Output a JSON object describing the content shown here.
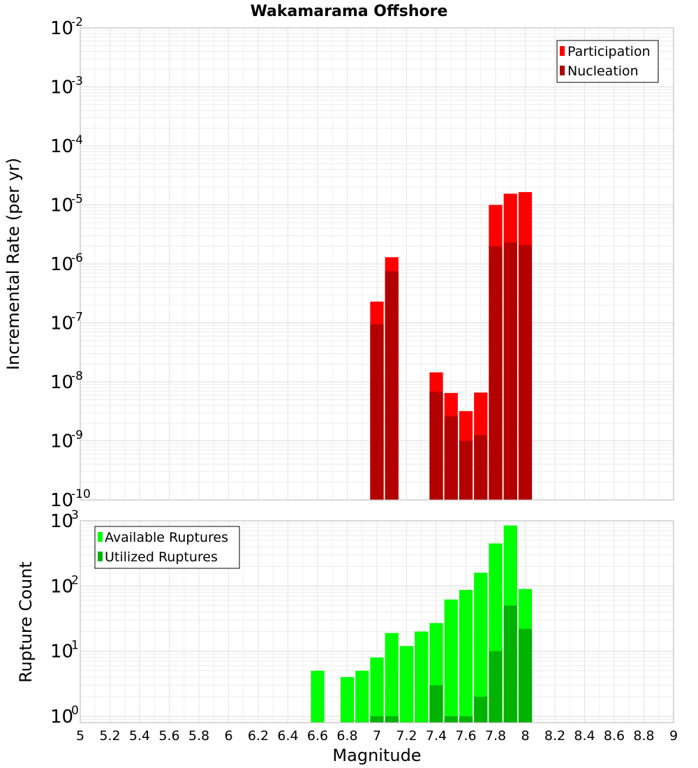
{
  "chart_data": [
    {
      "type": "bar",
      "title": "Wakamarama Offshore",
      "ylabel": "Incremental Rate (per yr)",
      "xlabel": "",
      "yscale": "log",
      "ylim": [
        1e-10,
        0.01
      ],
      "xlim": [
        5,
        9
      ],
      "grid": true,
      "legend_position": "top-right",
      "ytick_bases": [
        "10",
        "10",
        "10",
        "10",
        "10",
        "10",
        "10",
        "10",
        "10"
      ],
      "ytick_exponents": [
        "-10",
        "-9",
        "-8",
        "-7",
        "-6",
        "-5",
        "-4",
        "-3",
        "-2"
      ],
      "x": [
        7.0,
        7.1,
        7.4,
        7.5,
        7.6,
        7.7,
        7.8,
        7.9,
        8.0
      ],
      "series": [
        {
          "name": "Participation",
          "color": "#ff0000",
          "values": [
            2.3e-07,
            1.3e-06,
            1.45e-08,
            6.5e-09,
            3.2e-09,
            6.6e-09,
            1e-05,
            1.55e-05,
            1.65e-05
          ]
        },
        {
          "name": "Nucleation",
          "color": "#b30000",
          "values": [
            9.5e-08,
            7.5e-07,
            6.8e-09,
            2.6e-09,
            1e-09,
            1.25e-09,
            2e-06,
            2.3e-06,
            2.1e-06
          ]
        }
      ]
    },
    {
      "type": "bar",
      "title": "",
      "ylabel": "Rupture Count",
      "xlabel": "Magnitude",
      "yscale": "log",
      "ylim": [
        0.8,
        1000
      ],
      "xlim": [
        5,
        9
      ],
      "grid": true,
      "legend_position": "top-left",
      "ytick_bases": [
        "10",
        "10",
        "10",
        "10"
      ],
      "ytick_exponents": [
        "0",
        "1",
        "2",
        "3"
      ],
      "xtick_labels": [
        "5",
        "5.2",
        "5.4",
        "5.6",
        "5.8",
        "6",
        "6.2",
        "6.4",
        "6.6",
        "6.8",
        "7",
        "7.2",
        "7.4",
        "7.6",
        "7.8",
        "8",
        "8.2",
        "8.4",
        "8.6",
        "8.8",
        "9"
      ],
      "x": [
        6.6,
        6.8,
        6.9,
        7.0,
        7.1,
        7.2,
        7.3,
        7.4,
        7.5,
        7.6,
        7.7,
        7.8,
        7.9,
        8.0
      ],
      "series": [
        {
          "name": "Available Ruptures",
          "color": "#00ff00",
          "values": [
            5,
            4,
            5,
            8,
            19,
            12,
            20,
            27,
            62,
            87,
            160,
            450,
            850,
            90
          ]
        },
        {
          "name": "Utilized Ruptures",
          "color": "#00b300",
          "values": [
            0,
            0,
            0,
            1,
            1,
            0,
            0,
            3,
            1,
            1,
            2,
            10,
            50,
            22
          ]
        }
      ]
    }
  ]
}
